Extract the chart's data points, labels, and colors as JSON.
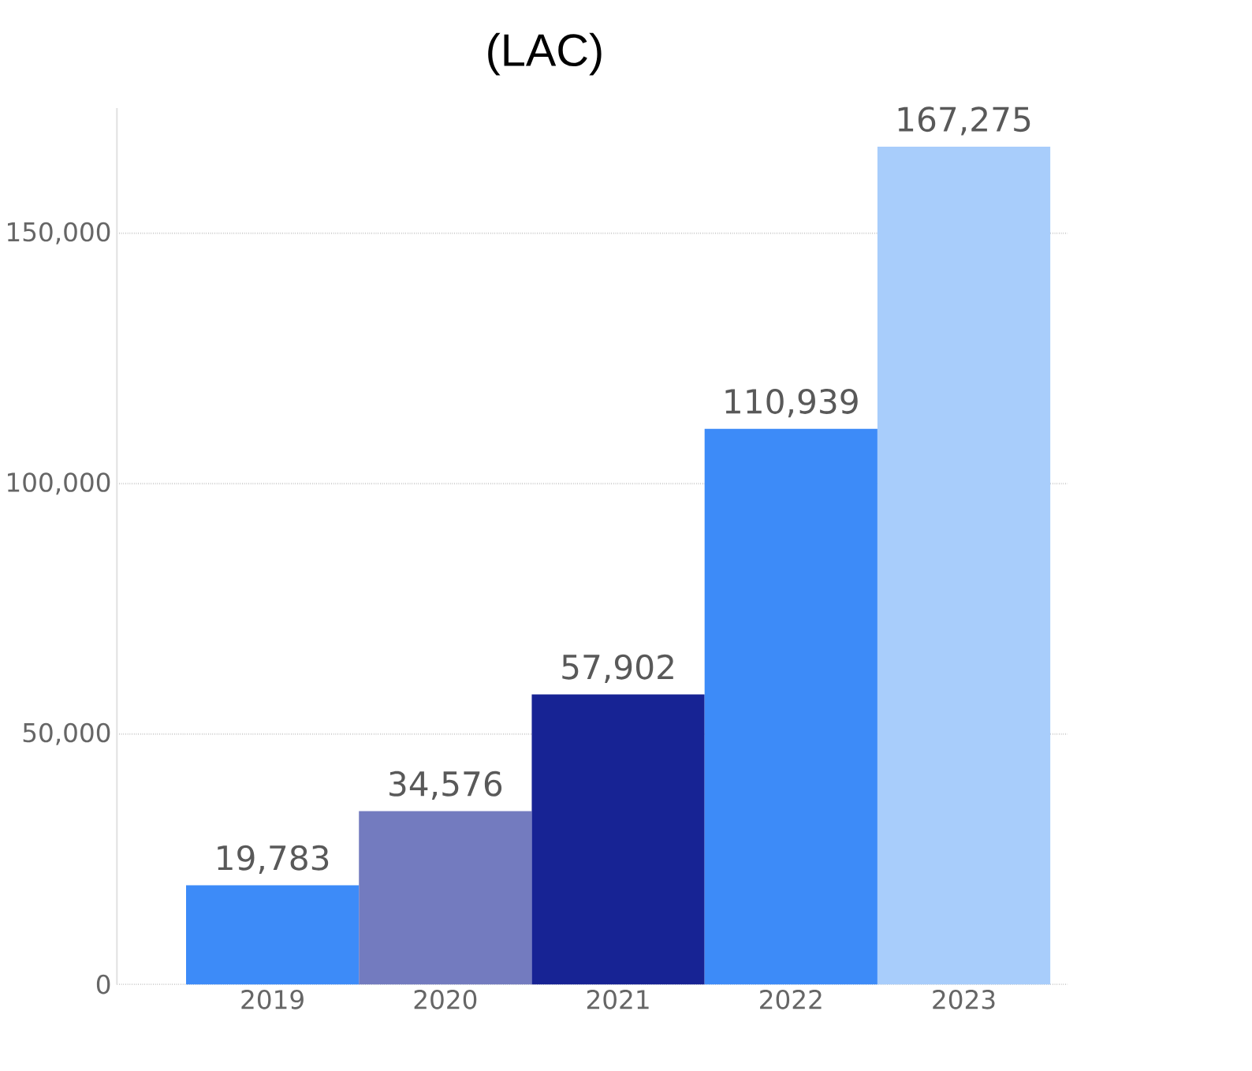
{
  "chart_data": {
    "type": "bar",
    "title": "(LAC)",
    "categories": [
      "2019",
      "2020",
      "2021",
      "2022",
      "2023"
    ],
    "values": [
      19783,
      34576,
      57902,
      110939,
      167275
    ],
    "colors": [
      "#3d8bf8",
      "#737bbf",
      "#172394",
      "#3d8bf8",
      "#a8cdfb"
    ],
    "value_labels": [
      "19,783",
      "34,576",
      "57,902",
      "110,939",
      "167,275"
    ],
    "ylim": [
      0,
      175000
    ],
    "yticks": [
      {
        "value": 0,
        "label": "0"
      },
      {
        "value": 50000,
        "label": "50,000"
      },
      {
        "value": 100000,
        "label": "100,000"
      },
      {
        "value": 150000,
        "label": "150,000"
      }
    ],
    "grid": "y"
  }
}
